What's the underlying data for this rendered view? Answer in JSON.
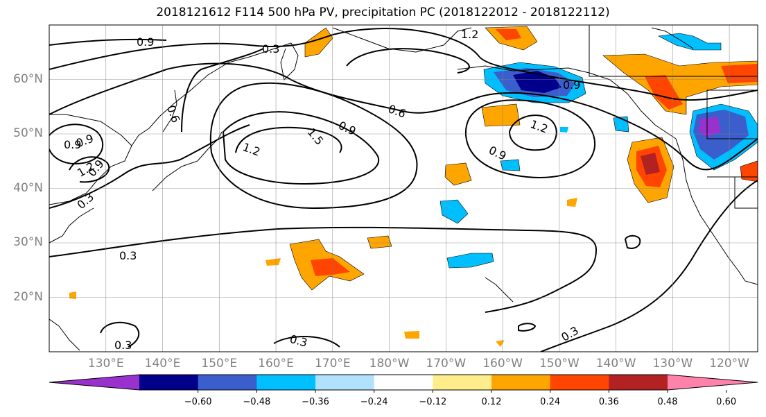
{
  "title": "2018121612 F114 500 hPa PV, precipitation PC (2018122012 - 2018122112)",
  "map": {
    "lat_labels": [
      {
        "text": "60°N",
        "lat": 60
      },
      {
        "text": "50°N",
        "lat": 50
      },
      {
        "text": "40°N",
        "lat": 40
      },
      {
        "text": "30°N",
        "lat": 30
      },
      {
        "text": "20°N",
        "lat": 20
      }
    ],
    "lon_labels": [
      {
        "text": "130°E",
        "lon": 130
      },
      {
        "text": "140°E",
        "lon": 140
      },
      {
        "text": "150°E",
        "lon": 150
      },
      {
        "text": "160°E",
        "lon": 160
      },
      {
        "text": "170°E",
        "lon": 170
      },
      {
        "text": "180°W",
        "lon": 180
      },
      {
        "text": "170°W",
        "lon": 190
      },
      {
        "text": "160°W",
        "lon": 200
      },
      {
        "text": "150°W",
        "lon": 210
      },
      {
        "text": "140°W",
        "lon": 220
      },
      {
        "text": "130°W",
        "lon": 230
      },
      {
        "text": "120°W",
        "lon": 240
      }
    ],
    "lon_range": [
      120,
      245
    ],
    "lat_range": [
      10,
      70
    ],
    "grid": true,
    "contour_labels": [
      "0.9",
      "0.3",
      "1.2",
      "0.6",
      "0.9",
      "0.9",
      "1.2",
      "0.6",
      "0.3",
      "0.9",
      "1.2",
      "1.5",
      "0.9",
      "1.2",
      "0.9",
      "0.3",
      "0.3",
      "0.3",
      "0.3",
      "0.9"
    ]
  },
  "colorbar": {
    "colors": [
      "#9932cc",
      "#00008b",
      "#3a5fcd",
      "#00bfff",
      "#b0e2ff",
      "#ffffff",
      "#ffec8b",
      "#ffa500",
      "#ff4500",
      "#b22222",
      "#ff82ab"
    ],
    "ticks": [
      "−0.60",
      "−0.48",
      "−0.36",
      "−0.24",
      "−0.12",
      "0.12",
      "0.24",
      "0.36",
      "0.48",
      "0.60"
    ]
  }
}
